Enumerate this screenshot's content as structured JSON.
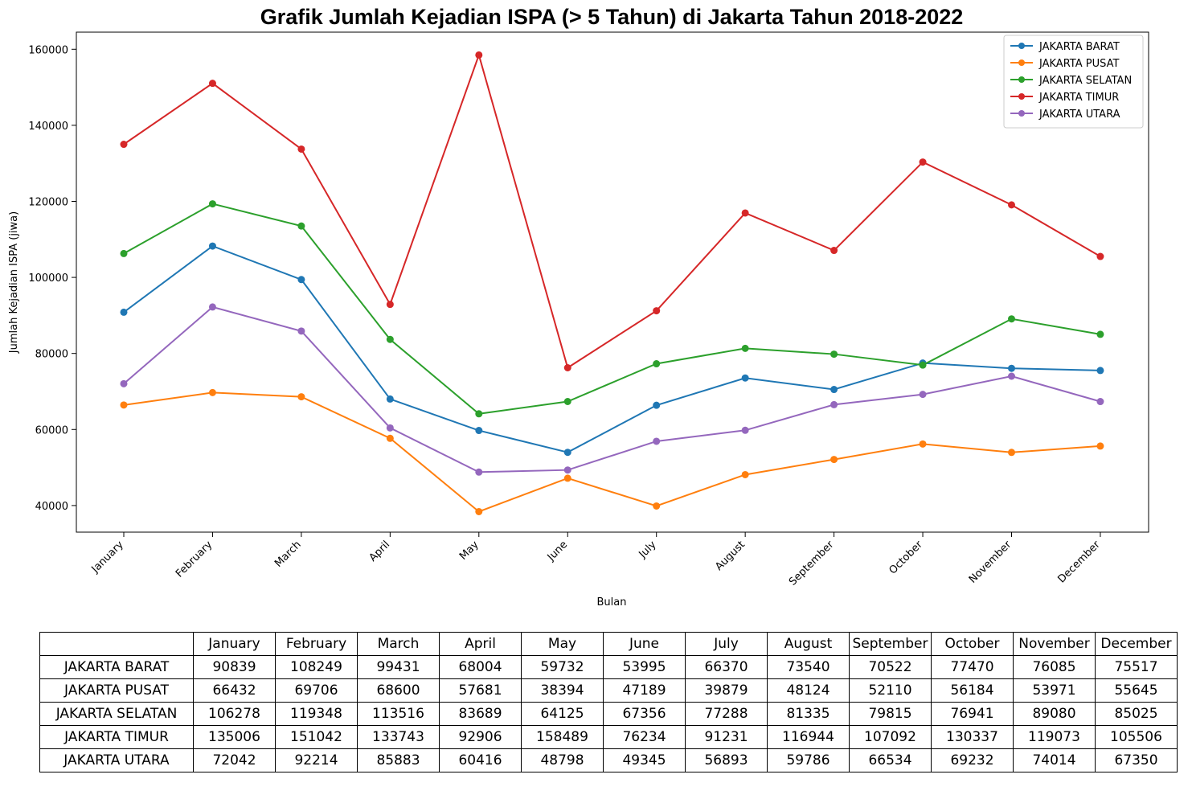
{
  "chart_data": {
    "type": "line",
    "title": "Grafik Jumlah Kejadian ISPA (> 5 Tahun) di Jakarta Tahun 2018-2022",
    "xlabel": "Bulan",
    "ylabel": "Jumlah Kejadian ISPA (jiwa)",
    "categories": [
      "January",
      "February",
      "March",
      "April",
      "May",
      "June",
      "July",
      "August",
      "September",
      "October",
      "November",
      "December"
    ],
    "ylim": [
      33000,
      164500
    ],
    "yticks": [
      40000,
      60000,
      80000,
      100000,
      120000,
      140000,
      160000
    ],
    "grid": false,
    "legend_position": "top-right",
    "series": [
      {
        "name": "JAKARTA BARAT",
        "color": "#1f77b4",
        "values": [
          90839,
          108249,
          99431,
          68004,
          59732,
          53995,
          66370,
          73540,
          70522,
          77470,
          76085,
          75517
        ]
      },
      {
        "name": "JAKARTA PUSAT",
        "color": "#ff7f0e",
        "values": [
          66432,
          69706,
          68600,
          57681,
          38394,
          47189,
          39879,
          48124,
          52110,
          56184,
          53971,
          55645
        ]
      },
      {
        "name": "JAKARTA SELATAN",
        "color": "#2ca02c",
        "values": [
          106278,
          119348,
          113516,
          83689,
          64125,
          67356,
          77288,
          81335,
          79815,
          76941,
          89080,
          85025
        ]
      },
      {
        "name": "JAKARTA TIMUR",
        "color": "#d62728",
        "values": [
          135006,
          151042,
          133743,
          92906,
          158489,
          76234,
          91231,
          116944,
          107092,
          130337,
          119073,
          105506
        ]
      },
      {
        "name": "JAKARTA UTARA",
        "color": "#9467bd",
        "values": [
          72042,
          92214,
          85883,
          60416,
          48798,
          49345,
          56893,
          59786,
          66534,
          69232,
          74014,
          67350
        ]
      }
    ]
  },
  "table": {
    "columns": [
      "January",
      "February",
      "March",
      "April",
      "May",
      "June",
      "July",
      "August",
      "September",
      "October",
      "November",
      "December"
    ],
    "rows": [
      {
        "label": "JAKARTA BARAT",
        "values": [
          "90839",
          "108249",
          "99431",
          "68004",
          "59732",
          "53995",
          "66370",
          "73540",
          "70522",
          "77470",
          "76085",
          "75517"
        ]
      },
      {
        "label": "JAKARTA PUSAT",
        "values": [
          "66432",
          "69706",
          "68600",
          "57681",
          "38394",
          "47189",
          "39879",
          "48124",
          "52110",
          "56184",
          "53971",
          "55645"
        ]
      },
      {
        "label": "JAKARTA SELATAN",
        "values": [
          "106278",
          "119348",
          "113516",
          "83689",
          "64125",
          "67356",
          "77288",
          "81335",
          "79815",
          "76941",
          "89080",
          "85025"
        ]
      },
      {
        "label": "JAKARTA TIMUR",
        "values": [
          "135006",
          "151042",
          "133743",
          "92906",
          "158489",
          "76234",
          "91231",
          "116944",
          "107092",
          "130337",
          "119073",
          "105506"
        ]
      },
      {
        "label": "JAKARTA UTARA",
        "values": [
          "72042",
          "92214",
          "85883",
          "60416",
          "48798",
          "49345",
          "56893",
          "59786",
          "66534",
          "69232",
          "74014",
          "67350"
        ]
      }
    ]
  }
}
